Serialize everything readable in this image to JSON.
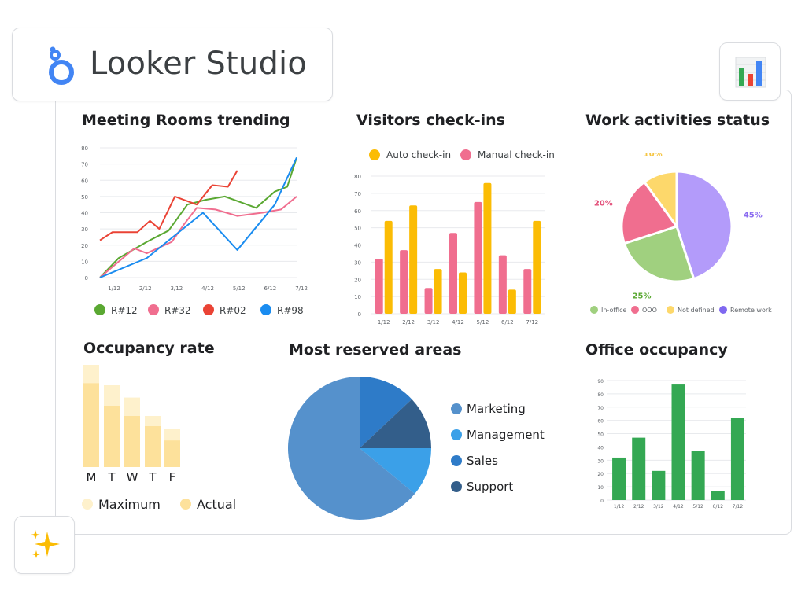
{
  "header": {
    "brand": "Looker Studio"
  },
  "colors": {
    "green": "#5aa832",
    "pink": "#f06e8f",
    "red": "#ea4335",
    "blue": "#1a8cf0",
    "yellow": "#fbbc04",
    "checkin_pink": "#f06e8f",
    "sheet_green": "#34a853"
  },
  "icons": {
    "logo": "looker-studio-logo-icon",
    "chart": "bar-chart-icon",
    "sparkle": "sparkle-icon"
  },
  "chart_data": [
    {
      "id": "meeting_rooms",
      "type": "line",
      "title": "Meeting Rooms trending",
      "x": [
        "1/12",
        "2/12",
        "3/12",
        "4/12",
        "5/12",
        "6/12",
        "7/12"
      ],
      "yticks": [
        0,
        10,
        20,
        30,
        40,
        50,
        60,
        70,
        80
      ],
      "ylim": [
        0,
        80
      ],
      "xrange": [
        0,
        6.3
      ],
      "legend_position": "bottom",
      "series": [
        {
          "name": "R#12",
          "color": "#5aa832",
          "points": [
            [
              0,
              0
            ],
            [
              0.6,
              12
            ],
            [
              1.5,
              22
            ],
            [
              2.2,
              29
            ],
            [
              2.8,
              45
            ],
            [
              3.4,
              48
            ],
            [
              4,
              50
            ],
            [
              5,
              43
            ],
            [
              5.6,
              53
            ],
            [
              6,
              56
            ],
            [
              6.3,
              74
            ]
          ]
        },
        {
          "name": "R#32",
          "color": "#f06e8f",
          "points": [
            [
              0,
              0
            ],
            [
              1.1,
              18
            ],
            [
              1.5,
              15
            ],
            [
              2.3,
              22
            ],
            [
              2.7,
              33
            ],
            [
              3.1,
              43
            ],
            [
              3.7,
              42
            ],
            [
              4.4,
              38
            ],
            [
              5.2,
              40
            ],
            [
              5.8,
              42
            ],
            [
              6.3,
              50
            ]
          ]
        },
        {
          "name": "R#02",
          "color": "#ea4335",
          "points": [
            [
              0,
              23
            ],
            [
              0.4,
              28
            ],
            [
              0.9,
              28
            ],
            [
              1.2,
              28
            ],
            [
              1.6,
              35
            ],
            [
              1.9,
              30
            ],
            [
              2.4,
              50
            ],
            [
              3.1,
              45
            ],
            [
              3.6,
              57
            ],
            [
              4.1,
              56
            ],
            [
              4.4,
              66
            ]
          ]
        },
        {
          "name": "R#98",
          "color": "#1a8cf0",
          "points": [
            [
              0,
              0
            ],
            [
              1.5,
              12
            ],
            [
              3.3,
              40
            ],
            [
              4.4,
              17
            ],
            [
              5.6,
              45
            ],
            [
              6.3,
              74
            ]
          ]
        }
      ]
    },
    {
      "id": "visitors",
      "type": "bar",
      "title": "Visitors check-ins",
      "categories": [
        "1/12",
        "2/12",
        "3/12",
        "4/12",
        "5/12",
        "6/12",
        "7/12"
      ],
      "yticks": [
        0,
        10,
        20,
        30,
        40,
        50,
        60,
        70,
        80
      ],
      "ylim": [
        0,
        80
      ],
      "legend_position": "top",
      "series": [
        {
          "name": "Manual check-in",
          "color": "#f06e8f",
          "values": [
            32,
            37,
            15,
            47,
            65,
            34,
            26
          ]
        },
        {
          "name": "Auto check-in",
          "color": "#fbbc04",
          "values": [
            54,
            63,
            26,
            24,
            76,
            14,
            54
          ]
        }
      ]
    },
    {
      "id": "work_activities",
      "type": "pie",
      "title": "Work activities status",
      "legend_position": "bottom",
      "slices": [
        {
          "name": "Remote work",
          "label": "45%",
          "value": 45,
          "color": "#b39bfa",
          "label_color": "#8a6bf0"
        },
        {
          "name": "In-office",
          "label": "25%",
          "value": 25,
          "color": "#a0d07f",
          "label_color": "#5aa832"
        },
        {
          "name": "OOO",
          "label": "20%",
          "value": 20,
          "color": "#f06e8f",
          "label_color": "#e3507a"
        },
        {
          "name": "Not defined",
          "label": "10%",
          "value": 10,
          "color": "#fdd86b",
          "label_color": "#f5c542"
        }
      ],
      "legend": [
        {
          "name": "In-office",
          "color": "#a0d07f"
        },
        {
          "name": "OOO",
          "color": "#f06e8f"
        },
        {
          "name": "Not defined",
          "color": "#fdd86b"
        },
        {
          "name": "Remote work",
          "color": "#7f68f0"
        }
      ]
    },
    {
      "id": "occupancy_rate",
      "type": "bar",
      "title": "Occupancy rate",
      "categories": [
        "M",
        "T",
        "W",
        "T",
        "F"
      ],
      "ylim": [
        0,
        100
      ],
      "legend_position": "bottom",
      "series": [
        {
          "name": "Maximum",
          "color": "#fef1cc",
          "values": [
            100,
            80,
            68,
            50,
            37
          ]
        },
        {
          "name": "Actual",
          "color": "#fde19b",
          "values": [
            82,
            60,
            50,
            40,
            26
          ]
        }
      ]
    },
    {
      "id": "most_reserved",
      "type": "pie",
      "title": "Most reserved areas",
      "legend_position": "right",
      "slices": [
        {
          "name": "Marketing",
          "value": 64,
          "color": "#5591cc"
        },
        {
          "name": "Management",
          "value": 11,
          "color": "#3ba0e8"
        },
        {
          "name": "Sales",
          "value": 13,
          "color": "#2e7bc8"
        },
        {
          "name": "Support",
          "value": 12,
          "color": "#335e8a"
        }
      ],
      "legend": [
        {
          "name": "Marketing",
          "color": "#5591cc"
        },
        {
          "name": "Management",
          "color": "#3ba0e8"
        },
        {
          "name": "Sales",
          "color": "#2e7bc8"
        },
        {
          "name": "Support",
          "color": "#335e8a"
        }
      ]
    },
    {
      "id": "office_occupancy",
      "type": "bar",
      "title": "Office occupancy",
      "categories": [
        "1/12",
        "2/12",
        "3/12",
        "4/12",
        "5/12",
        "6/12",
        "7/12"
      ],
      "yticks": [
        0,
        10,
        20,
        30,
        40,
        50,
        60,
        70,
        80,
        90
      ],
      "ylim": [
        0,
        90
      ],
      "series": [
        {
          "name": "",
          "color": "#34a853",
          "values": [
            32,
            47,
            22,
            87,
            37,
            7,
            62
          ]
        }
      ]
    }
  ]
}
